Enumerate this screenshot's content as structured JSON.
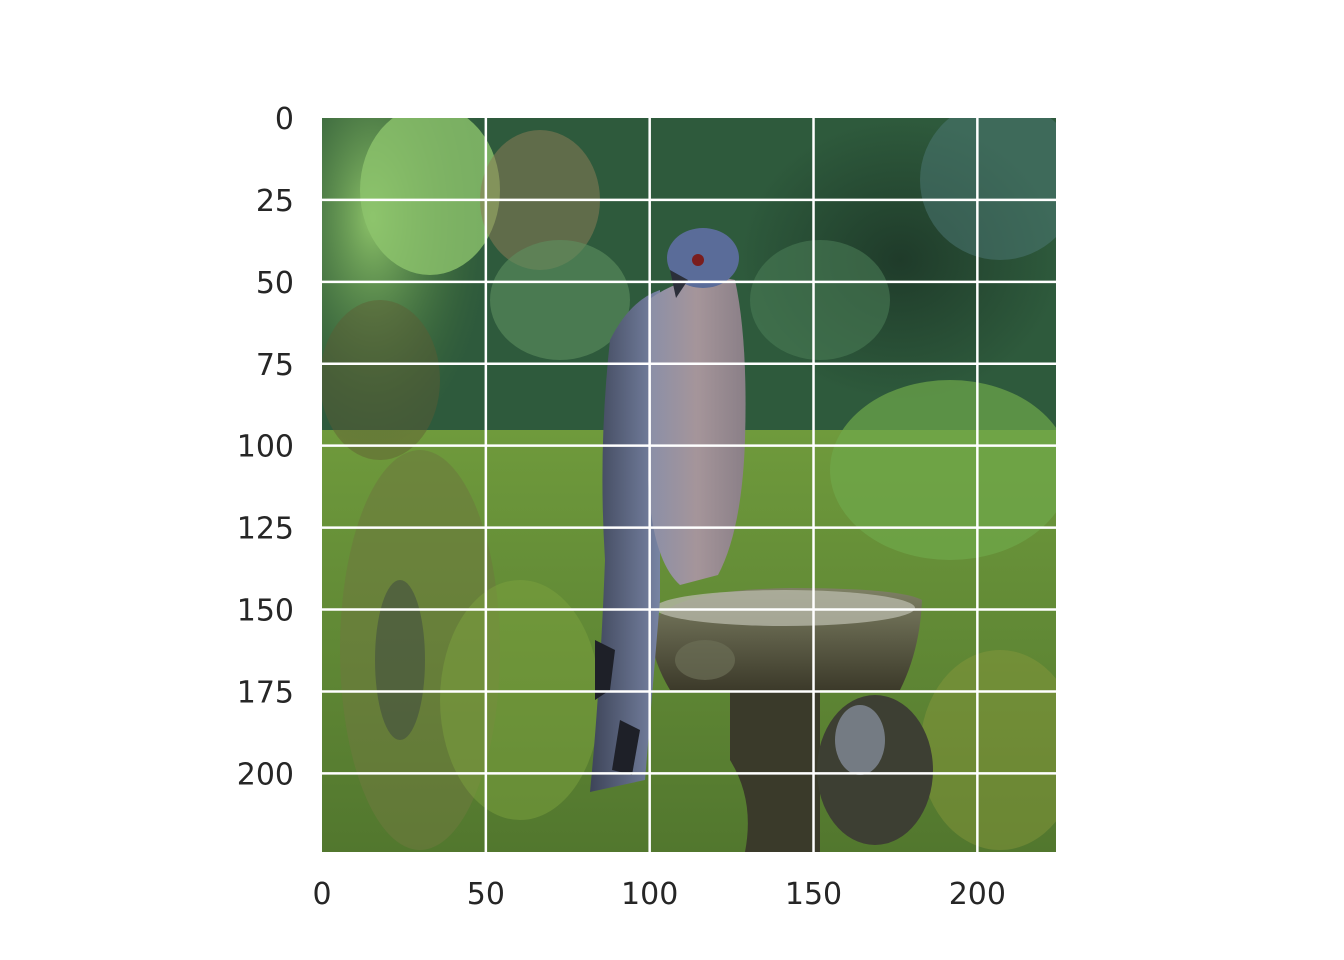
{
  "chart_data": {
    "type": "image",
    "title": "",
    "xlabel": "",
    "ylabel": "",
    "image_subject": "Hawk perched on a stone bird bath, green foliage background",
    "xlim": [
      0,
      224
    ],
    "ylim": [
      224,
      0
    ],
    "y_axis_inverted": true,
    "grid": true,
    "grid_color": "#ffffff",
    "x_ticks": [
      0,
      50,
      100,
      150,
      200
    ],
    "y_ticks": [
      0,
      25,
      50,
      75,
      100,
      125,
      150,
      175,
      200
    ],
    "x_tick_labels": [
      "0",
      "50",
      "100",
      "150",
      "200"
    ],
    "y_tick_labels": [
      "0",
      "25",
      "50",
      "75",
      "100",
      "125",
      "150",
      "175",
      "200"
    ]
  }
}
